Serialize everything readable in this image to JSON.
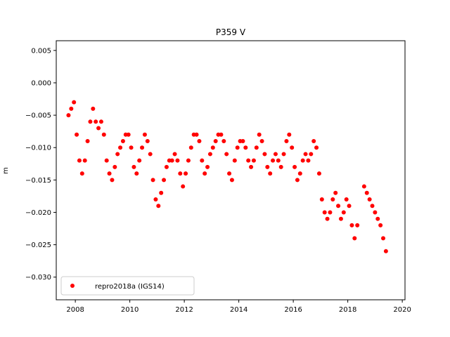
{
  "chart_data": {
    "type": "scatter",
    "title": "P359 V",
    "xlabel": "",
    "ylabel": "m",
    "xlim": [
      2007.3,
      2020.1
    ],
    "ylim": [
      -0.0335,
      0.0065
    ],
    "xticks": [
      2008,
      2010,
      2012,
      2014,
      2016,
      2018,
      2020
    ],
    "yticks": [
      0.005,
      0.0,
      -0.005,
      -0.01,
      -0.015,
      -0.02,
      -0.025,
      -0.03
    ],
    "ytick_labels": [
      "0.005",
      "0.000",
      "−0.005",
      "−0.010",
      "−0.015",
      "−0.020",
      "−0.025",
      "−0.030"
    ],
    "grid": false,
    "legend_position": "lower-left",
    "series": [
      {
        "name": "repro2018a (IGS14)",
        "color": "#ff0000",
        "marker": "circle",
        "x": [
          2007.75,
          2007.85,
          2007.95,
          2008.05,
          2008.15,
          2008.25,
          2008.35,
          2008.45,
          2008.55,
          2008.65,
          2008.75,
          2008.85,
          2008.95,
          2009.05,
          2009.15,
          2009.25,
          2009.35,
          2009.45,
          2009.55,
          2009.65,
          2009.75,
          2009.85,
          2009.95,
          2010.05,
          2010.15,
          2010.25,
          2010.35,
          2010.45,
          2010.55,
          2010.65,
          2010.75,
          2010.85,
          2010.95,
          2011.05,
          2011.15,
          2011.25,
          2011.35,
          2011.45,
          2011.55,
          2011.65,
          2011.75,
          2011.85,
          2011.95,
          2012.05,
          2012.15,
          2012.25,
          2012.35,
          2012.45,
          2012.55,
          2012.65,
          2012.75,
          2012.85,
          2012.95,
          2013.05,
          2013.15,
          2013.25,
          2013.35,
          2013.45,
          2013.55,
          2013.65,
          2013.75,
          2013.85,
          2013.95,
          2014.05,
          2014.15,
          2014.25,
          2014.35,
          2014.45,
          2014.55,
          2014.65,
          2014.75,
          2014.85,
          2014.95,
          2015.05,
          2015.15,
          2015.25,
          2015.35,
          2015.45,
          2015.55,
          2015.65,
          2015.75,
          2015.85,
          2015.95,
          2016.05,
          2016.15,
          2016.25,
          2016.35,
          2016.45,
          2016.55,
          2016.65,
          2016.75,
          2016.85,
          2016.95,
          2017.05,
          2017.15,
          2017.25,
          2017.35,
          2017.45,
          2017.55,
          2017.65,
          2017.75,
          2017.85,
          2017.95,
          2018.05,
          2018.15,
          2018.25,
          2018.35,
          2018.6,
          2018.7,
          2018.8,
          2018.9,
          2019.0,
          2019.1,
          2019.2,
          2019.3,
          2019.4
        ],
        "y": [
          -0.005,
          -0.004,
          -0.003,
          -0.008,
          -0.012,
          -0.014,
          -0.012,
          -0.009,
          -0.006,
          -0.004,
          -0.006,
          -0.007,
          -0.006,
          -0.008,
          -0.012,
          -0.014,
          -0.015,
          -0.013,
          -0.011,
          -0.01,
          -0.009,
          -0.008,
          -0.008,
          -0.01,
          -0.013,
          -0.014,
          -0.012,
          -0.01,
          -0.008,
          -0.009,
          -0.011,
          -0.015,
          -0.018,
          -0.019,
          -0.017,
          -0.015,
          -0.013,
          -0.012,
          -0.012,
          -0.011,
          -0.012,
          -0.014,
          -0.016,
          -0.014,
          -0.012,
          -0.01,
          -0.008,
          -0.008,
          -0.009,
          -0.012,
          -0.014,
          -0.013,
          -0.011,
          -0.01,
          -0.009,
          -0.008,
          -0.008,
          -0.009,
          -0.011,
          -0.014,
          -0.015,
          -0.012,
          -0.01,
          -0.009,
          -0.009,
          -0.01,
          -0.012,
          -0.013,
          -0.012,
          -0.01,
          -0.008,
          -0.009,
          -0.011,
          -0.013,
          -0.014,
          -0.012,
          -0.011,
          -0.012,
          -0.013,
          -0.011,
          -0.009,
          -0.008,
          -0.01,
          -0.013,
          -0.015,
          -0.014,
          -0.012,
          -0.011,
          -0.012,
          -0.011,
          -0.009,
          -0.01,
          -0.014,
          -0.018,
          -0.02,
          -0.021,
          -0.02,
          -0.018,
          -0.017,
          -0.019,
          -0.021,
          -0.02,
          -0.018,
          -0.019,
          -0.022,
          -0.024,
          -0.022,
          -0.016,
          -0.017,
          -0.018,
          -0.019,
          -0.02,
          -0.021,
          -0.022,
          -0.024,
          -0.026
        ]
      }
    ]
  }
}
